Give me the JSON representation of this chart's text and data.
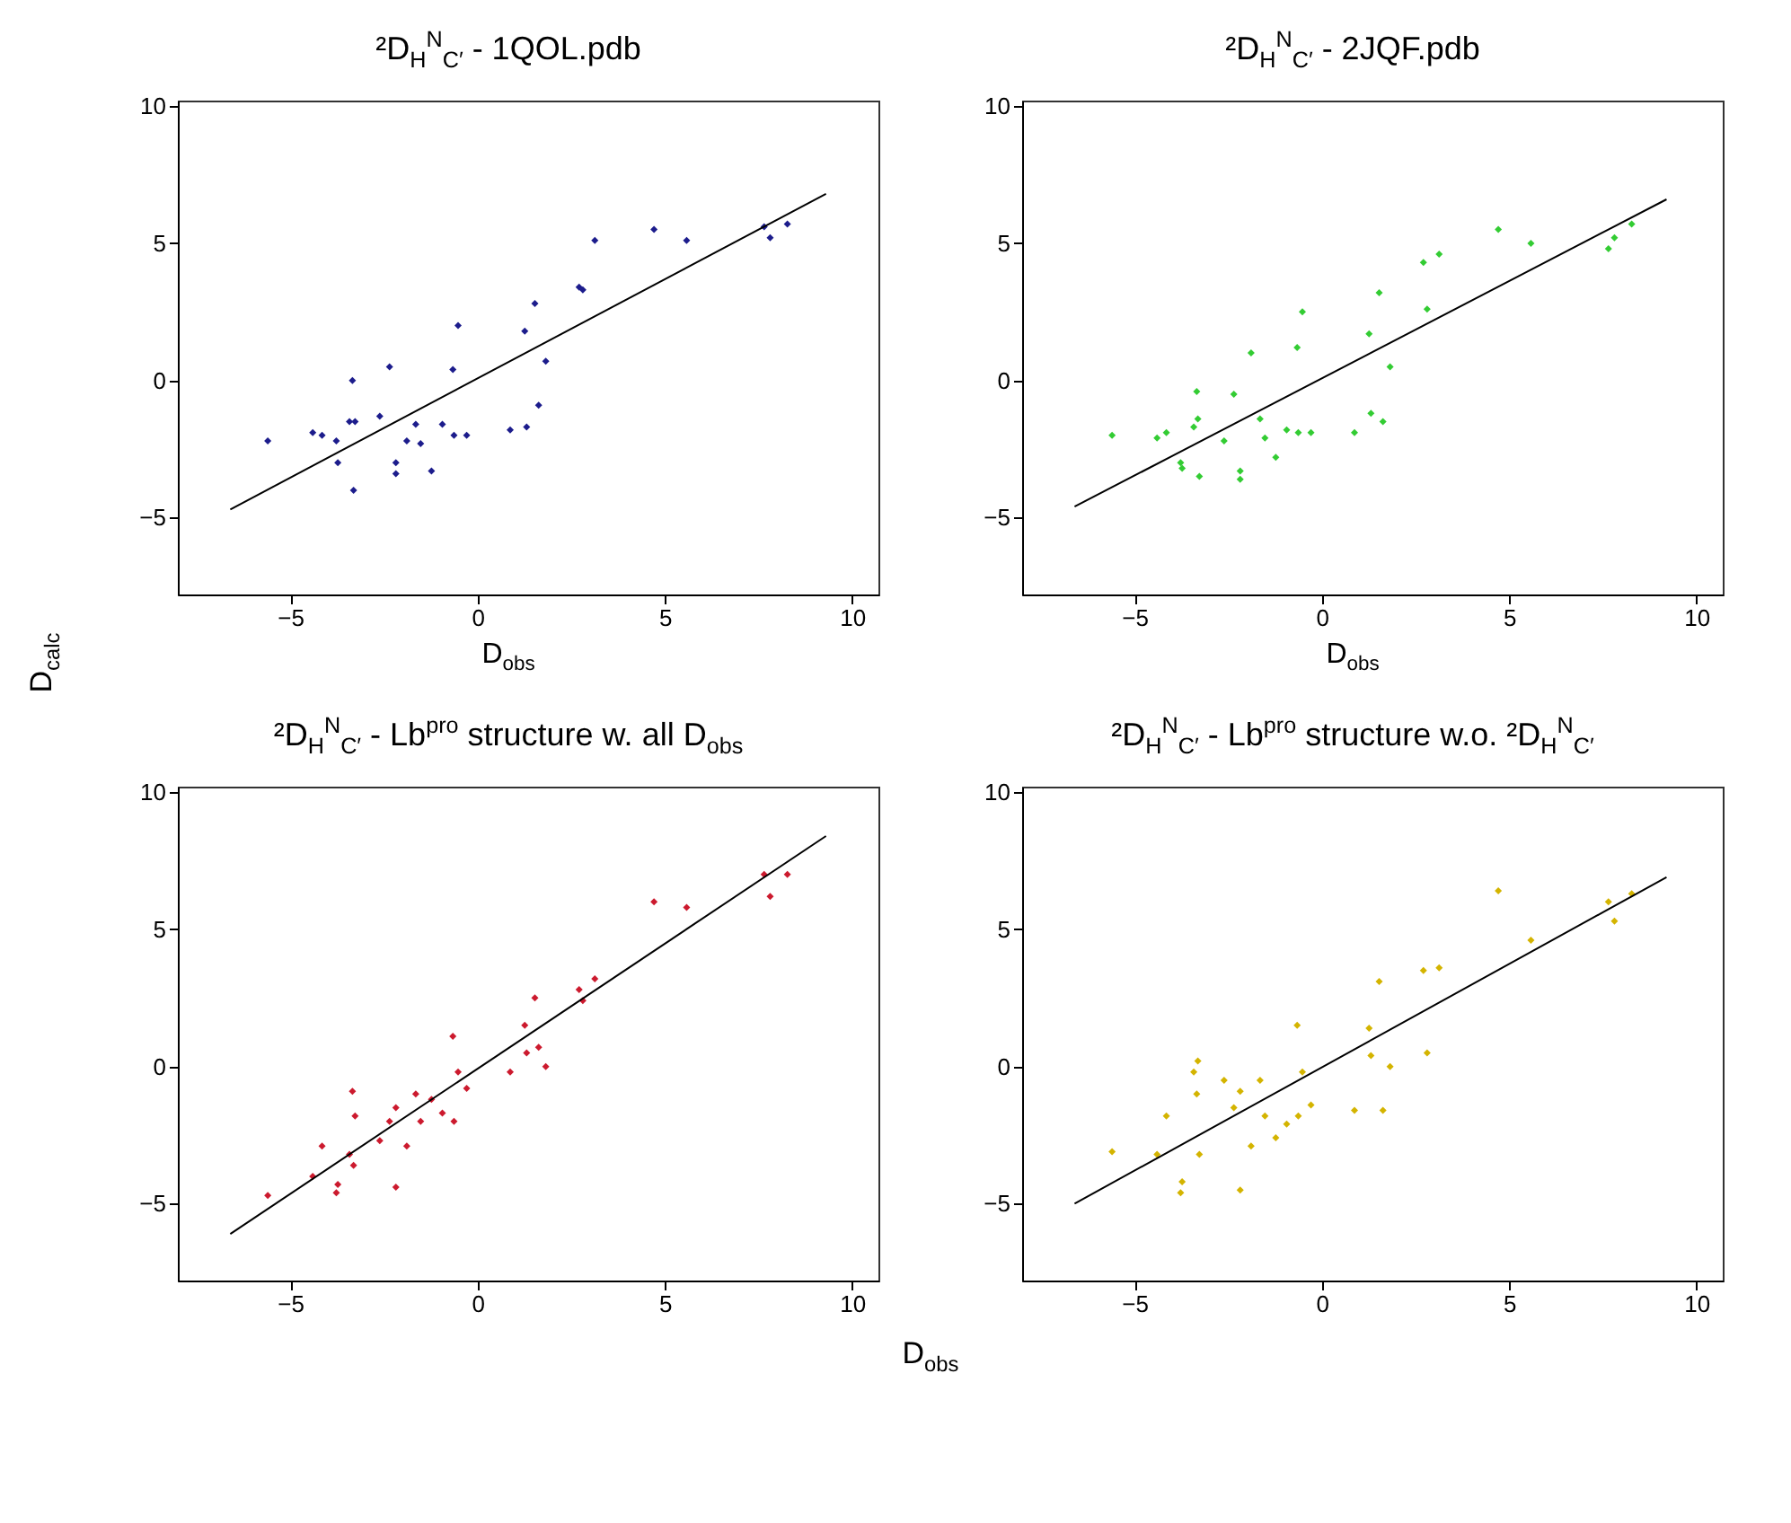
{
  "chart_data": [
    {
      "type": "scatter",
      "title": "²D$_{H}$$^{N}$$_{C′}$ - 1QOL.pdb",
      "xlabel": "D$_{obs}$",
      "xlim": [
        -8,
        10.7
      ],
      "ylim": [
        -7.8,
        10.2
      ],
      "xticks": [
        -5,
        0,
        5,
        10
      ],
      "yticks": [
        -5,
        0,
        5,
        10
      ],
      "series": [
        {
          "marker": "diamond",
          "color": "#1c1c8c",
          "x": [
            -5.6,
            -4.4,
            -4.15,
            -3.77,
            -3.73,
            -3.42,
            -3.34,
            -3.31,
            -3.27,
            -2.61,
            -2.35,
            -2.18,
            -2.18,
            -1.89,
            -1.65,
            -1.52,
            -1.23,
            -0.94,
            -0.66,
            -0.63,
            -0.52,
            -0.29,
            0.87,
            1.26,
            1.31,
            1.53,
            1.63,
            1.82,
            2.71,
            2.81,
            3.13,
            4.71,
            5.58,
            7.65,
            7.81,
            8.27
          ],
          "values": [
            -2.2,
            -1.9,
            -2.0,
            -2.2,
            -3.0,
            -1.5,
            0.0,
            -4.0,
            -1.5,
            -1.3,
            0.5,
            -3.0,
            -3.4,
            -2.2,
            -1.6,
            -2.3,
            -3.3,
            -1.6,
            0.4,
            -2.0,
            2.0,
            -2.0,
            -1.8,
            1.8,
            -1.7,
            2.8,
            -0.9,
            0.7,
            3.4,
            3.3,
            5.1,
            5.5,
            5.1,
            5.6,
            5.2,
            5.7
          ]
        },
        {
          "type": "line",
          "color": "#000000",
          "x": [
            -6.6,
            9.3
          ],
          "values": [
            -4.7,
            6.8
          ]
        }
      ]
    },
    {
      "type": "scatter",
      "title": "²D$_{H}$$^{N}$$_{C′}$ - 2JQF.pdb",
      "xlabel": "D$_{obs}$",
      "xlim": [
        -8,
        10.7
      ],
      "ylim": [
        -7.8,
        10.2
      ],
      "xticks": [
        -5,
        0,
        5,
        10
      ],
      "yticks": [
        -5,
        0,
        5,
        10
      ],
      "series": [
        {
          "marker": "diamond",
          "color": "#33cc33",
          "x": [
            -5.6,
            -4.4,
            -4.15,
            -3.77,
            -3.73,
            -3.42,
            -3.34,
            -3.31,
            -3.27,
            -2.61,
            -2.35,
            -2.18,
            -2.18,
            -1.89,
            -1.65,
            -1.52,
            -1.23,
            -0.94,
            -0.66,
            -0.63,
            -0.52,
            -0.29,
            0.87,
            1.26,
            1.31,
            1.53,
            1.63,
            1.82,
            2.71,
            2.81,
            3.13,
            4.71,
            5.58,
            7.65,
            7.81,
            8.27
          ],
          "values": [
            -2.0,
            -2.1,
            -1.9,
            -3.0,
            -3.2,
            -1.7,
            -0.4,
            -1.4,
            -3.5,
            -2.2,
            -0.5,
            -3.3,
            -3.6,
            1.0,
            -1.4,
            -2.1,
            -2.8,
            -1.8,
            1.2,
            -1.9,
            2.5,
            -1.9,
            -1.9,
            1.7,
            -1.2,
            3.2,
            -1.5,
            0.5,
            4.3,
            2.6,
            4.6,
            5.5,
            5.0,
            4.8,
            5.2,
            5.7
          ]
        },
        {
          "type": "line",
          "color": "#000000",
          "x": [
            -6.6,
            9.2
          ],
          "values": [
            -4.6,
            6.6
          ]
        }
      ]
    },
    {
      "type": "scatter",
      "title": "²D$_{H}$$^{N}$$_{C′}$ - Lb$^{pro}$ structure w. all D$_{obs}$",
      "xlabel": "D$_{obs}$",
      "ylabel": "D$_{calc}$",
      "xlim": [
        -8,
        10.7
      ],
      "ylim": [
        -7.8,
        10.2
      ],
      "xticks": [
        -5,
        0,
        5,
        10
      ],
      "yticks": [
        -5,
        0,
        5,
        10
      ],
      "series": [
        {
          "marker": "diamond",
          "color": "#cc1a2e",
          "x": [
            -5.6,
            -4.4,
            -4.15,
            -3.77,
            -3.73,
            -3.42,
            -3.34,
            -3.31,
            -3.27,
            -2.61,
            -2.35,
            -2.18,
            -2.18,
            -1.89,
            -1.65,
            -1.52,
            -1.23,
            -0.94,
            -0.66,
            -0.63,
            -0.52,
            -0.29,
            0.87,
            1.26,
            1.31,
            1.53,
            1.63,
            1.82,
            2.71,
            2.81,
            3.13,
            4.71,
            5.58,
            7.65,
            7.81,
            8.27
          ],
          "values": [
            -4.7,
            -4.0,
            -2.9,
            -4.6,
            -4.3,
            -3.2,
            -0.9,
            -3.6,
            -1.8,
            -2.7,
            -2.0,
            -1.5,
            -4.4,
            -2.9,
            -1.0,
            -2.0,
            -1.2,
            -1.7,
            1.1,
            -2.0,
            -0.2,
            -0.8,
            -0.2,
            1.5,
            0.5,
            2.5,
            0.7,
            0.0,
            2.8,
            2.4,
            3.2,
            6.0,
            5.8,
            7.0,
            6.2,
            7.0
          ]
        },
        {
          "type": "line",
          "color": "#000000",
          "x": [
            -6.6,
            9.3
          ],
          "values": [
            -6.1,
            8.4
          ]
        }
      ]
    },
    {
      "type": "scatter",
      "title": "²D$_{H}$$^{N}$$_{C′}$ - Lb$^{pro}$ structure w.o. ²D$_{H}$$^{N}$$_{C′}$",
      "xlim": [
        -8,
        10.7
      ],
      "ylim": [
        -7.8,
        10.2
      ],
      "xticks": [
        -5,
        0,
        5,
        10
      ],
      "yticks": [
        -5,
        0,
        5,
        10
      ],
      "series": [
        {
          "marker": "diamond",
          "color": "#d4b400",
          "x": [
            -5.6,
            -4.4,
            -4.15,
            -3.77,
            -3.73,
            -3.42,
            -3.34,
            -3.31,
            -3.27,
            -2.61,
            -2.35,
            -2.18,
            -2.18,
            -1.89,
            -1.65,
            -1.52,
            -1.23,
            -0.94,
            -0.66,
            -0.63,
            -0.52,
            -0.29,
            0.87,
            1.26,
            1.31,
            1.53,
            1.63,
            1.82,
            2.71,
            2.81,
            3.13,
            4.71,
            5.58,
            7.65,
            7.81,
            8.27
          ],
          "values": [
            -3.1,
            -3.2,
            -1.8,
            -4.6,
            -4.2,
            -0.2,
            -1.0,
            0.2,
            -3.2,
            -0.5,
            -1.5,
            -0.9,
            -4.5,
            -2.9,
            -0.5,
            -1.8,
            -2.6,
            -2.1,
            1.5,
            -1.8,
            -0.2,
            -1.4,
            -1.6,
            1.4,
            0.4,
            3.1,
            -1.6,
            0.0,
            3.5,
            0.5,
            3.6,
            6.4,
            4.6,
            6.0,
            5.3,
            6.3
          ]
        },
        {
          "type": "line",
          "color": "#000000",
          "x": [
            -6.6,
            9.2
          ],
          "values": [
            -5.0,
            6.9
          ]
        }
      ]
    }
  ]
}
